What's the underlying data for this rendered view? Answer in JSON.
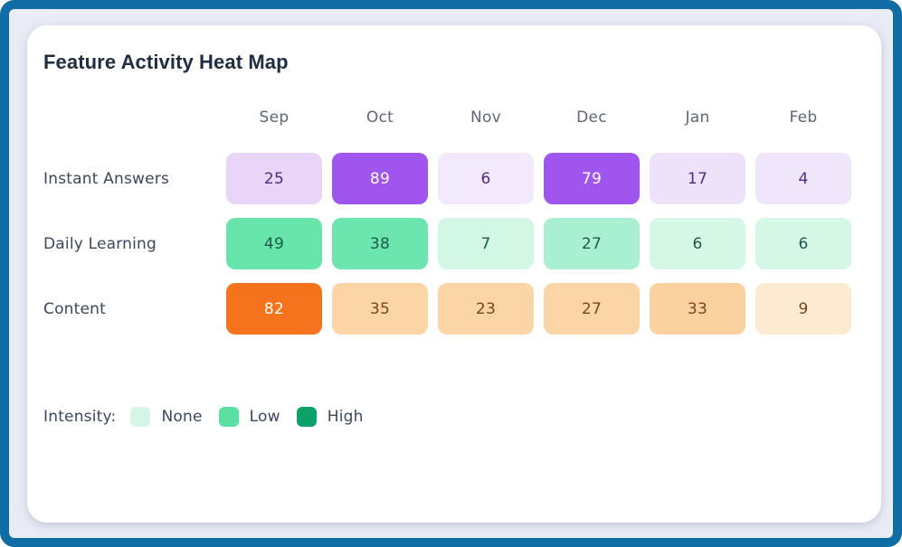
{
  "theme": {
    "frame_border": "#106ca4",
    "page_background": "#e9ecf5",
    "card_background": "#ffffff",
    "title_color": "#1e2d42",
    "column_header_color": "#5d6676",
    "row_label_color": "#3a4761"
  },
  "chart_data": {
    "type": "heatmap",
    "title": "Feature Activity Heat Map",
    "columns": [
      "Sep",
      "Oct",
      "Nov",
      "Dec",
      "Jan",
      "Feb"
    ],
    "rows": [
      {
        "label": "Instant Answers",
        "values": [
          25,
          89,
          6,
          79,
          17,
          4
        ],
        "cell_colors": [
          "#e9d5f8",
          "#a055ee",
          "#f2e9fc",
          "#a055ee",
          "#eee2fb",
          "#f0e6fc"
        ],
        "text_colors": [
          "#4e2c85",
          "#ffffff",
          "#4e2c85",
          "#ffffff",
          "#4e2c85",
          "#4e2c85"
        ]
      },
      {
        "label": "Daily Learning",
        "values": [
          49,
          38,
          7,
          27,
          6,
          6
        ],
        "cell_colors": [
          "#67e5ab",
          "#6ce6ae",
          "#d2f7e4",
          "#a9efd1",
          "#d4f7e6",
          "#d4f7e6"
        ],
        "text_colors": [
          "#1e5a49",
          "#1e5a49",
          "#1e5a49",
          "#1e5a49",
          "#1e5a49",
          "#1e5a49"
        ]
      },
      {
        "label": "Content",
        "values": [
          82,
          35,
          23,
          27,
          33,
          9
        ],
        "cell_colors": [
          "#f4731c",
          "#fbd5a6",
          "#fbd5a6",
          "#fbd5a6",
          "#fad2a0",
          "#fdebd1"
        ],
        "text_colors": [
          "#ffffff",
          "#7d431f",
          "#7d431f",
          "#7d431f",
          "#7d431f",
          "#7d431f"
        ]
      }
    ],
    "legend": {
      "label": "Intensity:",
      "entries": [
        {
          "label": "None",
          "color": "#d6f5e5"
        },
        {
          "label": "Low",
          "color": "#5ce0a2"
        },
        {
          "label": "High",
          "color": "#0ba169"
        }
      ]
    },
    "layout": {
      "legend_position": "bottom-left",
      "grid": false
    }
  }
}
